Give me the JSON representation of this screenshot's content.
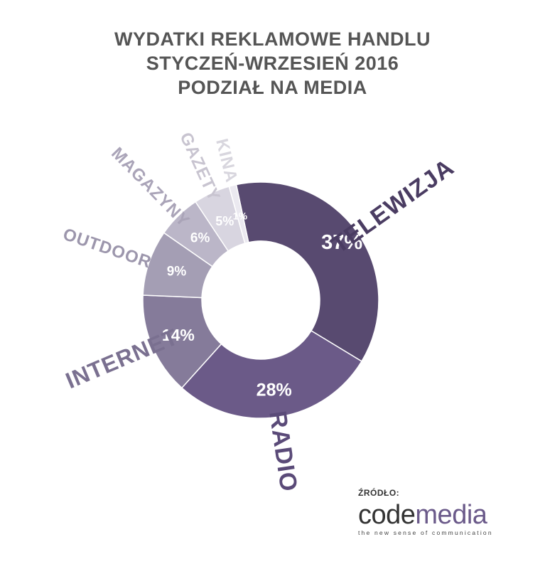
{
  "chart_data": {
    "type": "pie",
    "title_lines": [
      "WYDATKI REKLAMOWE HANDLU",
      "STYCZEŃ-WRZESIEŃ 2016",
      "PODZIAŁ NA MEDIA"
    ],
    "slices": [
      {
        "label": "TELEWIZJA",
        "value": 37,
        "value_label": "37%",
        "color": "#584a70",
        "label_color": "#4a3c62"
      },
      {
        "label": "RADIO",
        "value": 28,
        "value_label": "28%",
        "color": "#6b5a88",
        "label_color": "#5a4a78"
      },
      {
        "label": "INTERNET",
        "value": 14,
        "value_label": "14%",
        "color": "#857b9a",
        "label_color": "#7a7090"
      },
      {
        "label": "OUTDOOR",
        "value": 9,
        "value_label": "9%",
        "color": "#a49eb4",
        "label_color": "#9c96ac"
      },
      {
        "label": "MAGAZYNY",
        "value": 6,
        "value_label": "6%",
        "color": "#bbb6c8",
        "label_color": "#aaa4b8"
      },
      {
        "label": "GAZETY",
        "value": 5,
        "value_label": "5%",
        "color": "#d8d5e0",
        "label_color": "#c8c4d0"
      },
      {
        "label": "KINA",
        "value": 1,
        "value_label": "1%",
        "color": "#ebe9f0",
        "label_color": "#d8d6de"
      }
    ],
    "legend": "none"
  },
  "source": {
    "label": "ŹRÓDŁO:",
    "logo_part1": "code",
    "logo_part2": "media",
    "tagline": "the new sense of communication"
  }
}
